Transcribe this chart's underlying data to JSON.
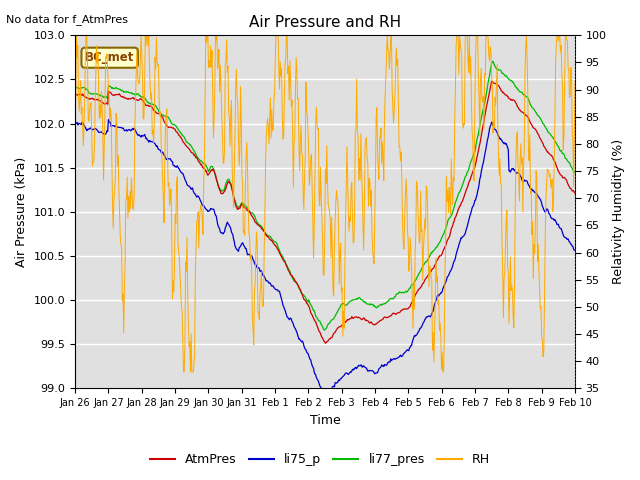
{
  "title": "Air Pressure and RH",
  "top_left_text": "No data for f_AtmPres",
  "annotation_box": "BC_met",
  "xlabel": "Time",
  "ylabel_left": "Air Pressure (kPa)",
  "ylabel_right": "Relativity Humidity (%)",
  "ylim_left": [
    99.0,
    103.0
  ],
  "ylim_right": [
    35,
    100
  ],
  "yticks_left": [
    99.0,
    99.5,
    100.0,
    100.5,
    101.0,
    101.5,
    102.0,
    102.5,
    103.0
  ],
  "yticks_right": [
    35,
    40,
    45,
    50,
    55,
    60,
    65,
    70,
    75,
    80,
    85,
    90,
    95,
    100
  ],
  "xtick_labels": [
    "Jan 26",
    "Jan 27",
    "Jan 28",
    "Jan 29",
    "Jan 30",
    "Jan 31",
    "Feb 1",
    "Feb 2",
    "Feb 3",
    "Feb 4",
    "Feb 5",
    "Feb 6",
    "Feb 7",
    "Feb 8",
    "Feb 9",
    "Feb 10"
  ],
  "colors": {
    "AtmPres": "#cc0000",
    "li75_p": "#0000cc",
    "li77_pres": "#00bb00",
    "RH": "#ffaa00"
  },
  "background_color": "#e0e0e0",
  "figsize": [
    6.4,
    4.8
  ],
  "dpi": 100
}
